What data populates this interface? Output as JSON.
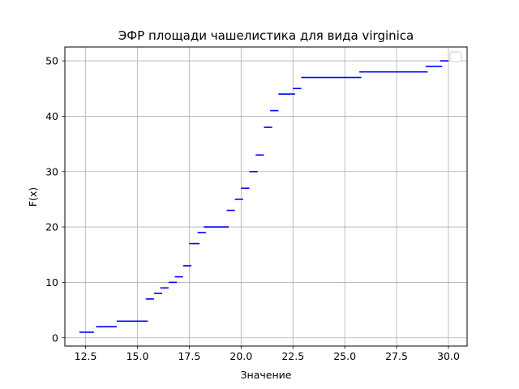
{
  "chart_data": {
    "type": "line",
    "title": "ЭФР площади чашелистика для вида virginica",
    "xlabel": "Значение",
    "ylabel": "F(x)",
    "xlim": [
      11.5,
      30.9
    ],
    "ylim": [
      -1.5,
      52.5
    ],
    "x_ticks": [
      12.5,
      15.0,
      17.5,
      20.0,
      22.5,
      25.0,
      27.5,
      30.0
    ],
    "x_tick_labels": [
      "12.5",
      "15.0",
      "17.5",
      "20.0",
      "22.5",
      "25.0",
      "27.5",
      "30.0"
    ],
    "y_ticks": [
      0,
      10,
      20,
      30,
      40,
      50
    ],
    "y_tick_labels": [
      "0",
      "10",
      "20",
      "30",
      "40",
      "50"
    ],
    "grid": true,
    "legend": "top-right",
    "line_color": "#0000ff",
    "steps": [
      {
        "x_start": 12.2,
        "x_end": 12.9,
        "y": 1
      },
      {
        "x_start": 13.0,
        "x_end": 14.0,
        "y": 2
      },
      {
        "x_start": 14.0,
        "x_end": 15.5,
        "y": 3
      },
      {
        "x_start": 15.4,
        "x_end": 15.8,
        "y": 7
      },
      {
        "x_start": 15.8,
        "x_end": 16.2,
        "y": 8
      },
      {
        "x_start": 16.1,
        "x_end": 16.5,
        "y": 9
      },
      {
        "x_start": 16.5,
        "x_end": 16.9,
        "y": 10
      },
      {
        "x_start": 16.8,
        "x_end": 17.2,
        "y": 11
      },
      {
        "x_start": 17.2,
        "x_end": 17.6,
        "y": 13
      },
      {
        "x_start": 17.5,
        "x_end": 18.0,
        "y": 17
      },
      {
        "x_start": 17.9,
        "x_end": 18.3,
        "y": 19
      },
      {
        "x_start": 18.2,
        "x_end": 19.4,
        "y": 20
      },
      {
        "x_start": 19.3,
        "x_end": 19.7,
        "y": 23
      },
      {
        "x_start": 19.7,
        "x_end": 20.1,
        "y": 25
      },
      {
        "x_start": 20.0,
        "x_end": 20.4,
        "y": 27
      },
      {
        "x_start": 20.4,
        "x_end": 20.8,
        "y": 30
      },
      {
        "x_start": 20.7,
        "x_end": 21.1,
        "y": 33
      },
      {
        "x_start": 21.1,
        "x_end": 21.5,
        "y": 38
      },
      {
        "x_start": 21.4,
        "x_end": 21.8,
        "y": 41
      },
      {
        "x_start": 21.8,
        "x_end": 22.6,
        "y": 44
      },
      {
        "x_start": 22.5,
        "x_end": 22.9,
        "y": 45
      },
      {
        "x_start": 22.9,
        "x_end": 25.8,
        "y": 47
      },
      {
        "x_start": 25.7,
        "x_end": 29.0,
        "y": 48
      },
      {
        "x_start": 28.9,
        "x_end": 29.7,
        "y": 49
      },
      {
        "x_start": 29.6,
        "x_end": 30.0,
        "y": 50
      }
    ]
  }
}
